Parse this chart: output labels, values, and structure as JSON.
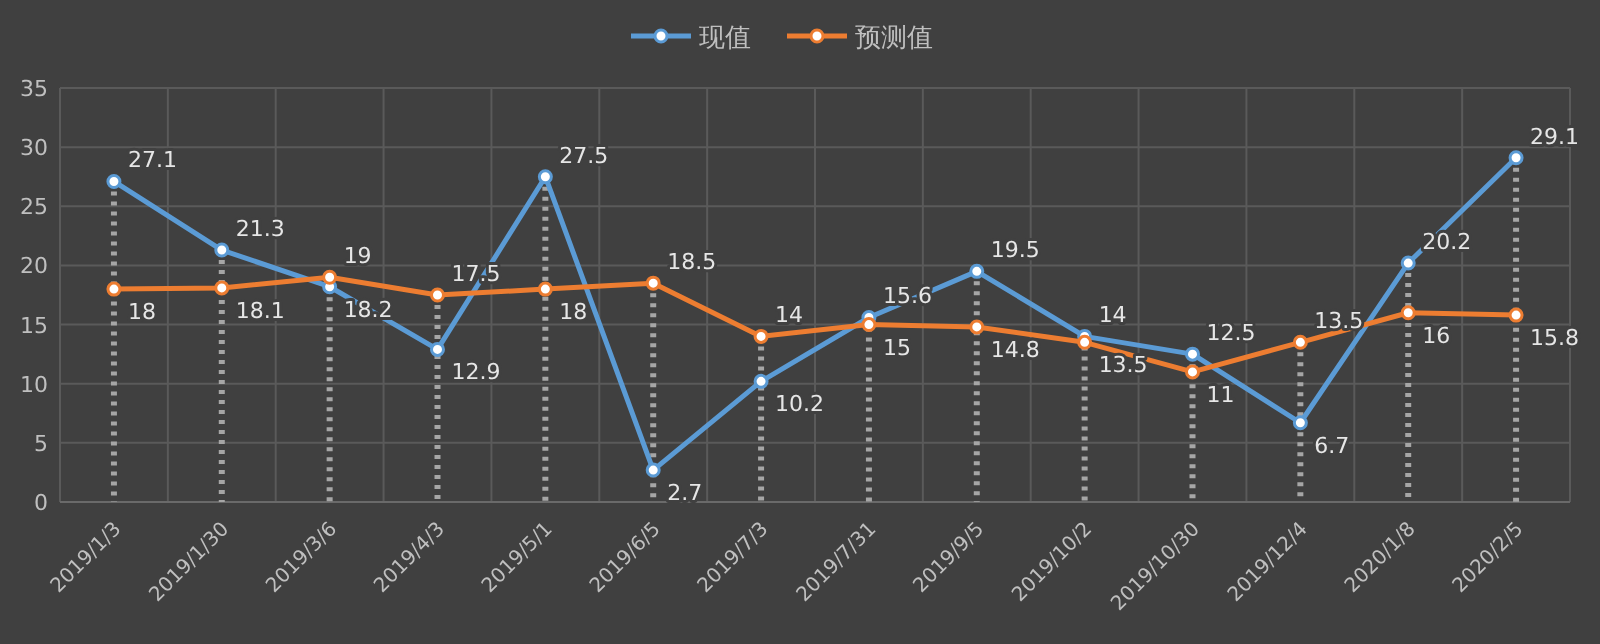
{
  "chart_data": {
    "type": "line",
    "categories": [
      "2019/1/3",
      "2019/1/30",
      "2019/3/6",
      "2019/4/3",
      "2019/5/1",
      "2019/6/5",
      "2019/7/3",
      "2019/7/31",
      "2019/9/5",
      "2019/10/2",
      "2019/10/30",
      "2019/12/4",
      "2020/1/8",
      "2020/2/5"
    ],
    "series": [
      {
        "name": "现值",
        "color": "#5b9bd5",
        "values": [
          27.1,
          21.3,
          18.2,
          12.9,
          27.5,
          2.7,
          10.2,
          15.6,
          19.5,
          14,
          12.5,
          6.7,
          20.2,
          29.1
        ]
      },
      {
        "name": "预测值",
        "color": "#ed7d31",
        "values": [
          18,
          18.1,
          19,
          17.5,
          18,
          18.5,
          14,
          15,
          14.8,
          13.5,
          11,
          13.5,
          16,
          15.8
        ]
      }
    ],
    "ylim": [
      0,
      35
    ],
    "yticks": [
      0,
      5,
      10,
      15,
      20,
      25,
      30,
      35
    ],
    "grid": true,
    "legend": "top",
    "marker": "circle",
    "line_style": "solid",
    "data_labels": true
  }
}
